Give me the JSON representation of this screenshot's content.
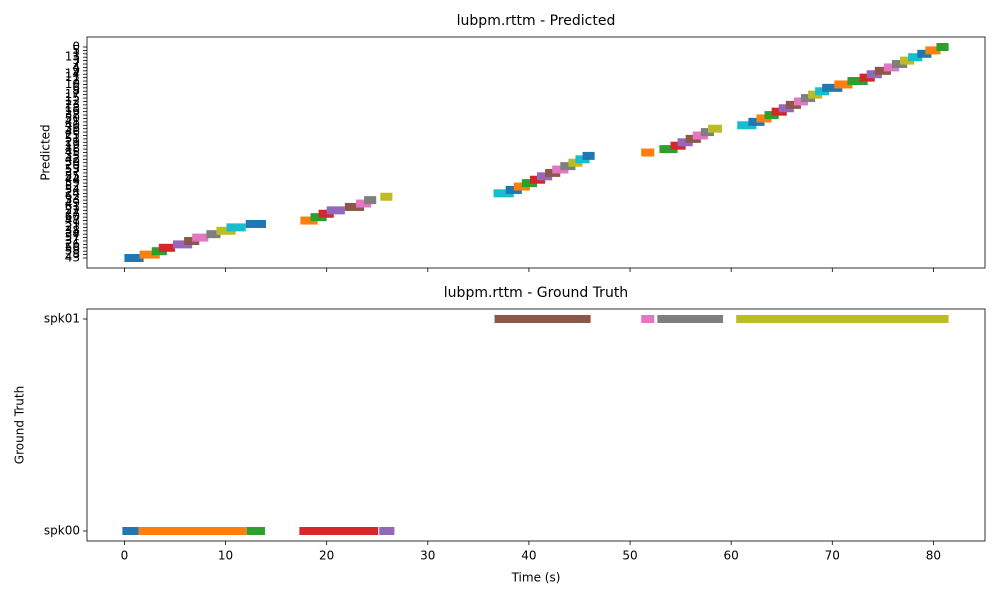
{
  "chart_data": [
    {
      "type": "timeline",
      "title": "lubpm.rttm - Predicted",
      "ylabel": "Predicted",
      "categories": [
        "43",
        "28",
        "58",
        "56",
        "26",
        "31",
        "57",
        "34",
        "38",
        "21",
        "39",
        "47",
        "60",
        "27",
        "22",
        "61",
        "49",
        "33",
        "62",
        "24",
        "54",
        "52",
        "59",
        "44",
        "55",
        "37",
        "53",
        "20",
        "30",
        "42",
        "35",
        "45",
        "48",
        "19",
        "29",
        "51",
        "25",
        "46",
        "36",
        "40",
        "41",
        "50",
        "32",
        "16",
        "18",
        "23",
        "12",
        "15",
        "17",
        "8",
        "6",
        "10",
        "2",
        "11",
        "14",
        "9",
        "4",
        "7",
        "3",
        "13",
        "1",
        "5",
        "0"
      ],
      "segments": [
        {
          "speaker": "43",
          "start": 0.0,
          "end": 1.9
        },
        {
          "speaker": "28",
          "start": 1.5,
          "end": 3.5
        },
        {
          "speaker": "58",
          "start": 2.7,
          "end": 4.2
        },
        {
          "speaker": "56",
          "start": 3.4,
          "end": 5.0
        },
        {
          "speaker": "26",
          "start": 4.8,
          "end": 6.7
        },
        {
          "speaker": "31",
          "start": 5.9,
          "end": 7.4
        },
        {
          "speaker": "57",
          "start": 6.7,
          "end": 8.3
        },
        {
          "speaker": "34",
          "start": 8.1,
          "end": 9.5
        },
        {
          "speaker": "38",
          "start": 9.1,
          "end": 11.0
        },
        {
          "speaker": "21",
          "start": 10.1,
          "end": 12.0
        },
        {
          "speaker": "39",
          "start": 12.0,
          "end": 14.0
        },
        {
          "speaker": "47",
          "start": 17.4,
          "end": 19.1
        },
        {
          "speaker": "60",
          "start": 18.4,
          "end": 20.0
        },
        {
          "speaker": "27",
          "start": 19.2,
          "end": 20.7
        },
        {
          "speaker": "22",
          "start": 20.0,
          "end": 21.8
        },
        {
          "speaker": "61",
          "start": 21.8,
          "end": 23.7
        },
        {
          "speaker": "49",
          "start": 22.9,
          "end": 24.4
        },
        {
          "speaker": "33",
          "start": 23.7,
          "end": 24.9
        },
        {
          "speaker": "62",
          "start": 25.3,
          "end": 26.5
        },
        {
          "speaker": "24",
          "start": 36.5,
          "end": 38.5
        },
        {
          "speaker": "54",
          "start": 37.7,
          "end": 39.3
        },
        {
          "speaker": "52",
          "start": 38.5,
          "end": 40.1
        },
        {
          "speaker": "59",
          "start": 39.3,
          "end": 40.8
        },
        {
          "speaker": "44",
          "start": 40.1,
          "end": 41.6
        },
        {
          "speaker": "55",
          "start": 40.8,
          "end": 42.3
        },
        {
          "speaker": "37",
          "start": 41.6,
          "end": 43.1
        },
        {
          "speaker": "53",
          "start": 42.3,
          "end": 43.9
        },
        {
          "speaker": "20",
          "start": 43.1,
          "end": 44.6
        },
        {
          "speaker": "30",
          "start": 43.9,
          "end": 45.3
        },
        {
          "speaker": "42",
          "start": 44.6,
          "end": 46.0
        },
        {
          "speaker": "35",
          "start": 45.3,
          "end": 46.5
        },
        {
          "speaker": "45",
          "start": 51.1,
          "end": 52.4
        },
        {
          "speaker": "48",
          "start": 52.9,
          "end": 54.7
        },
        {
          "speaker": "19",
          "start": 54.0,
          "end": 55.5
        },
        {
          "speaker": "29",
          "start": 54.7,
          "end": 56.2
        },
        {
          "speaker": "51",
          "start": 55.5,
          "end": 57.0
        },
        {
          "speaker": "25",
          "start": 56.2,
          "end": 57.7
        },
        {
          "speaker": "46",
          "start": 57.0,
          "end": 58.3
        },
        {
          "speaker": "36",
          "start": 57.7,
          "end": 59.1
        },
        {
          "speaker": "40",
          "start": 60.6,
          "end": 62.5
        },
        {
          "speaker": "41",
          "start": 61.7,
          "end": 63.3
        },
        {
          "speaker": "50",
          "start": 62.5,
          "end": 64.0
        },
        {
          "speaker": "32",
          "start": 63.3,
          "end": 64.7
        },
        {
          "speaker": "16",
          "start": 64.0,
          "end": 65.5
        },
        {
          "speaker": "18",
          "start": 64.7,
          "end": 66.2
        },
        {
          "speaker": "23",
          "start": 65.4,
          "end": 66.9
        },
        {
          "speaker": "12",
          "start": 66.2,
          "end": 67.6
        },
        {
          "speaker": "15",
          "start": 66.9,
          "end": 68.3
        },
        {
          "speaker": "17",
          "start": 67.6,
          "end": 69.0
        },
        {
          "speaker": "8",
          "start": 68.3,
          "end": 69.7
        },
        {
          "speaker": "6",
          "start": 69.0,
          "end": 71.0
        },
        {
          "speaker": "10",
          "start": 70.2,
          "end": 72.0
        },
        {
          "speaker": "2",
          "start": 71.5,
          "end": 73.5
        },
        {
          "speaker": "11",
          "start": 72.7,
          "end": 74.2
        },
        {
          "speaker": "14",
          "start": 73.4,
          "end": 74.9
        },
        {
          "speaker": "9",
          "start": 74.2,
          "end": 75.8
        },
        {
          "speaker": "4",
          "start": 75.1,
          "end": 76.6
        },
        {
          "speaker": "7",
          "start": 75.9,
          "end": 77.4
        },
        {
          "speaker": "3",
          "start": 76.7,
          "end": 78.1
        },
        {
          "speaker": "13",
          "start": 77.5,
          "end": 78.9
        },
        {
          "speaker": "1",
          "start": 78.4,
          "end": 79.8
        },
        {
          "speaker": "5",
          "start": 79.2,
          "end": 80.7
        },
        {
          "speaker": "0",
          "start": 80.3,
          "end": 81.5
        }
      ],
      "colors": [
        "#1f77b4",
        "#ff7f0e",
        "#2ca02c",
        "#d62728",
        "#9467bd",
        "#8c564b",
        "#e377c2",
        "#7f7f7f",
        "#bcbd22",
        "#17becf"
      ],
      "xlim": [
        -3.7,
        85.1
      ],
      "xticks": [
        0,
        10,
        20,
        30,
        40,
        50,
        60,
        70,
        80
      ]
    },
    {
      "type": "timeline",
      "title": "lubpm.rttm - Ground Truth",
      "ylabel": "Ground Truth",
      "xlabel": "Time (s)",
      "categories": [
        "spk00",
        "spk01"
      ],
      "segments": [
        {
          "speaker": "spk00",
          "start": -0.2,
          "end": 1.4
        },
        {
          "speaker": "spk00",
          "start": 1.4,
          "end": 12.1
        },
        {
          "speaker": "spk00",
          "start": 12.1,
          "end": 13.9
        },
        {
          "speaker": "spk00",
          "start": 17.3,
          "end": 25.1
        },
        {
          "speaker": "spk00",
          "start": 25.2,
          "end": 26.7
        },
        {
          "speaker": "spk01",
          "start": 36.6,
          "end": 46.1
        },
        {
          "speaker": "spk01",
          "start": 51.1,
          "end": 52.4
        },
        {
          "speaker": "spk01",
          "start": 52.7,
          "end": 59.2
        },
        {
          "speaker": "spk01",
          "start": 60.5,
          "end": 81.5
        }
      ],
      "colors": [
        "#1f77b4",
        "#ff7f0e",
        "#2ca02c",
        "#d62728",
        "#9467bd",
        "#8c564b",
        "#e377c2",
        "#7f7f7f",
        "#bcbd22",
        "#17becf"
      ],
      "xlim": [
        -3.7,
        85.1
      ],
      "xticks": [
        0,
        10,
        20,
        30,
        40,
        50,
        60,
        70,
        80
      ]
    }
  ]
}
